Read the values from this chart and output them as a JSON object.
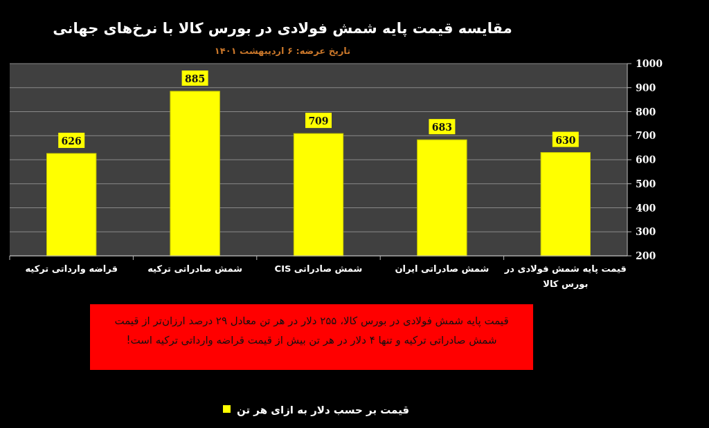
{
  "chart_data": {
    "type": "bar",
    "title": "مقایسه قیمت پایه شمش فولادی در بورس کالا با نرخ‌های جهانی",
    "subtitle": "تاریخ عرضه: ۶ اردیبهشت ۱۴۰۱",
    "categories": [
      "قراضه وارداتی ترکیه",
      "شمش صادراتی ترکیه",
      "شمش صادراتی CIS",
      "شمش صادراتی ایران",
      "قیمت پایه شمش فولادی در بورس کالا"
    ],
    "series": [
      {
        "name": "قیمت بر حسب دلار به ازای هر تن",
        "color": "#ffff00",
        "values": [
          626,
          885,
          709,
          683,
          630
        ]
      }
    ],
    "ylim": [
      200,
      1000
    ],
    "yticks": [
      200,
      300,
      400,
      500,
      600,
      700,
      800,
      900,
      1000
    ],
    "grid": "y",
    "legend": "bottom",
    "data_labels": true,
    "annotations": [
      "قیمت پایه شمش فولادی در بورس کالا، ۲۵۵ دلار در هر تن معادل ۲۹ درصد ارزان‌تر از قیمت شمش صادراتی ترکیه و تنها ۴ دلار در هر تن بیش از قیمت قراضه وارداتی ترکیه است!"
    ]
  }
}
